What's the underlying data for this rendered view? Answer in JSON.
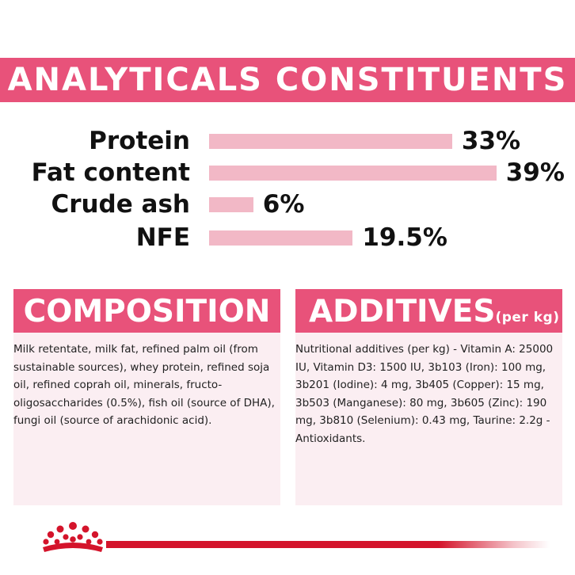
{
  "analyticals": {
    "title": "ANALYTICALS CONSTITUENTS",
    "rows": [
      {
        "label": "Protein",
        "value": "33%",
        "percent": 33
      },
      {
        "label": "Fat content",
        "value": "39%",
        "percent": 39
      },
      {
        "label": "Crude ash",
        "value": "6%",
        "percent": 6
      },
      {
        "label": "NFE",
        "value": "19.5%",
        "percent": 19.5
      }
    ]
  },
  "composition": {
    "title": "COMPOSITION",
    "text": "Milk retentate, milk fat, refined palm oil (from sustainable sources), whey protein, refined soja oil, refined coprah oil, minerals, fructo-oligosaccharides (0.5%), fish oil (source of DHA), fungi oil (source of arachidonic acid)."
  },
  "additives": {
    "title": "ADDITIVES",
    "title_suffix": "(per kg)",
    "text": "Nutritional additives (per kg) - Vitamin A: 25000 IU, Vitamin D3: 1500 IU, 3b103 (Iron): 100 mg, 3b201 (Iodine): 4 mg, 3b405 (Copper): 15 mg, 3b503 (Manganese): 80 mg, 3b605 (Zinc): 190 mg, 3b810 (Selenium): 0.43 mg, Taurine: 2.2g - Antioxidants."
  },
  "colors": {
    "accent_pink": "#e8527a",
    "bar_pink": "#f2b8c6",
    "panel_bg": "#fbeef2",
    "brand_red": "#d4142b"
  },
  "icons": {
    "brand_logo": "crown-logo-icon"
  }
}
